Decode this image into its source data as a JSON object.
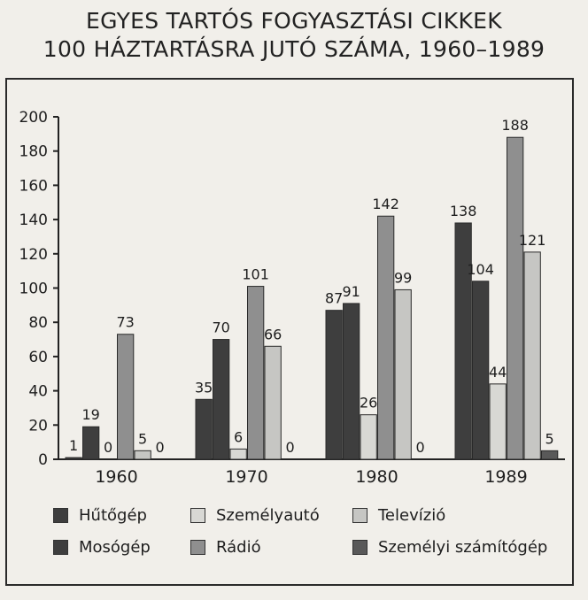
{
  "title_line1": "EGYES TARTÓS FOGYASZTÁSI CIKKEK",
  "title_line2": "100 HÁZTARTÁSRA JUTÓ SZÁMA, 1960–1989",
  "colors": {
    "hutogep": "#3e3e3e",
    "mosogep": "#3e3e3e",
    "szemelyauto": "#d8d8d4",
    "radio": "#8f8f8f",
    "televizio": "#c6c6c3",
    "szamitogep": "#595959"
  },
  "chart_data": {
    "type": "bar",
    "categories": [
      "1960",
      "1970",
      "1980",
      "1989"
    ],
    "ylim": [
      0,
      200
    ],
    "yticks": [
      0,
      20,
      40,
      60,
      80,
      100,
      120,
      140,
      160,
      180,
      200
    ],
    "series": [
      {
        "name": "Hűtőgép",
        "key": "hutogep",
        "values": [
          1,
          35,
          87,
          138
        ]
      },
      {
        "name": "Mosógép",
        "key": "mosogep",
        "values": [
          19,
          70,
          91,
          104
        ]
      },
      {
        "name": "Személyautó",
        "key": "szemelyauto",
        "values": [
          0,
          6,
          26,
          44
        ]
      },
      {
        "name": "Rádió",
        "key": "radio",
        "values": [
          73,
          101,
          142,
          188
        ]
      },
      {
        "name": "Televízió",
        "key": "televizio",
        "values": [
          5,
          66,
          99,
          121
        ]
      },
      {
        "name": "Személyi számítógép",
        "key": "szamitogep",
        "values": [
          0,
          0,
          0,
          5
        ]
      }
    ],
    "legend_order": [
      [
        "Hűtőgép",
        "Személyautó",
        "Televízió"
      ],
      [
        "Mosógép",
        "Rádió",
        "Személyi számítógép"
      ]
    ]
  }
}
